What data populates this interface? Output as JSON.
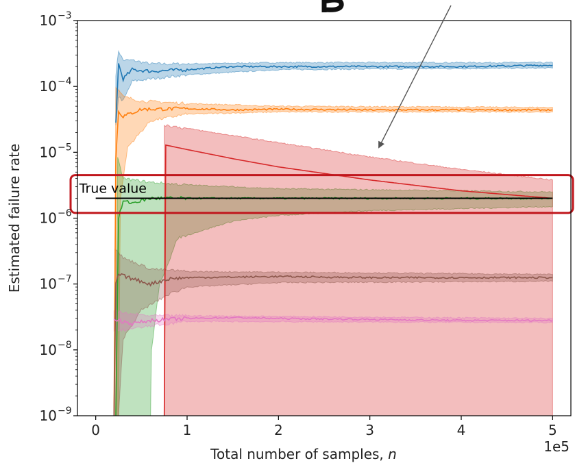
{
  "chart_data": {
    "type": "line",
    "title": "",
    "xlabel": "Total number of samples, n",
    "ylabel": "Estimated failure rate",
    "x_offset_label": "1e5",
    "yscale": "log",
    "xlim": [
      -0.2,
      5.2
    ],
    "ylim": [
      1e-09,
      0.001
    ],
    "x_ticks": [
      {
        "value": 0,
        "label": "0"
      },
      {
        "value": 1,
        "label": "1"
      },
      {
        "value": 2,
        "label": "2"
      },
      {
        "value": 3,
        "label": "3"
      },
      {
        "value": 4,
        "label": "4"
      },
      {
        "value": 5,
        "label": "5"
      }
    ],
    "y_ticks": [
      {
        "value": -9,
        "mant": "10",
        "exp": "−9"
      },
      {
        "value": -8,
        "mant": "10",
        "exp": "−8"
      },
      {
        "value": -7,
        "mant": "10",
        "exp": "−7"
      },
      {
        "value": -6,
        "mant": "10",
        "exp": "−6"
      },
      {
        "value": -5,
        "mant": "10",
        "exp": "−5"
      },
      {
        "value": -4,
        "mant": "10",
        "exp": "−4"
      },
      {
        "value": -3,
        "mant": "10",
        "exp": "−3"
      }
    ],
    "grid": false,
    "true_value": {
      "label": "True value",
      "value": 2e-06,
      "color": "#000000"
    },
    "highlight_box": {
      "color": "#c0161c",
      "y_range": [
        1.2e-06,
        4.5e-06
      ]
    },
    "series": [
      {
        "color": "#1f77b4",
        "x_start": 0.22,
        "end_value": 0.00021,
        "points": [
          [
            0.22,
            2.8e-05
          ],
          [
            0.25,
            0.00022
          ],
          [
            0.3,
            0.00013
          ],
          [
            0.4,
            0.00018
          ],
          [
            0.6,
            0.00017
          ],
          [
            1.0,
            0.00018
          ],
          [
            1.5,
            0.0002
          ],
          [
            2.0,
            0.0002
          ],
          [
            3.0,
            0.0002
          ],
          [
            4.0,
            0.0002
          ],
          [
            5.0,
            0.00021
          ]
        ],
        "band_upper": [
          [
            0.22,
            0.00015
          ],
          [
            0.25,
            0.00035
          ],
          [
            0.3,
            0.00025
          ],
          [
            0.4,
            0.00025
          ],
          [
            0.6,
            0.00022
          ],
          [
            1.0,
            0.00022
          ],
          [
            2.0,
            0.00023
          ],
          [
            5.0,
            0.00023
          ]
        ],
        "band_lower": [
          [
            0.22,
            2.5e-05
          ],
          [
            0.25,
            7e-05
          ],
          [
            0.3,
            6e-05
          ],
          [
            0.4,
            0.00012
          ],
          [
            0.6,
            0.00013
          ],
          [
            1.0,
            0.00015
          ],
          [
            2.0,
            0.00018
          ],
          [
            5.0,
            0.00019
          ]
        ]
      },
      {
        "color": "#ff7f0e",
        "x_start": 0.2,
        "end_value": 4.4e-05,
        "points": [
          [
            0.2,
            1e-09
          ],
          [
            0.22,
            8e-06
          ],
          [
            0.25,
            4.2e-05
          ],
          [
            0.3,
            3.5e-05
          ],
          [
            0.5,
            4.5e-05
          ],
          [
            1.0,
            4.6e-05
          ],
          [
            1.5,
            4.4e-05
          ],
          [
            2.0,
            4.5e-05
          ],
          [
            3.0,
            4.4e-05
          ],
          [
            4.0,
            4.4e-05
          ],
          [
            5.0,
            4.4e-05
          ]
        ],
        "band_upper": [
          [
            0.2,
            1e-09
          ],
          [
            0.22,
            0.0001
          ],
          [
            0.3,
            7e-05
          ],
          [
            0.5,
            6e-05
          ],
          [
            1.0,
            5.5e-05
          ],
          [
            2.0,
            5e-05
          ],
          [
            5.0,
            4.8e-05
          ]
        ],
        "band_lower": [
          [
            0.2,
            1e-09
          ],
          [
            0.22,
            1e-09
          ],
          [
            0.25,
            1e-09
          ],
          [
            0.27,
            2e-06
          ],
          [
            0.35,
            1.2e-05
          ],
          [
            0.6,
            3e-05
          ],
          [
            1.0,
            3.8e-05
          ],
          [
            2.0,
            4.1e-05
          ],
          [
            5.0,
            4.1e-05
          ]
        ]
      },
      {
        "color": "#2ca02c",
        "x_start": 0.22,
        "end_value": 2e-06,
        "points": [
          [
            0.22,
            1e-09
          ],
          [
            0.25,
            1e-06
          ],
          [
            0.3,
            1.8e-06
          ],
          [
            0.4,
            1.7e-06
          ],
          [
            0.6,
            2e-06
          ],
          [
            1.0,
            2e-06
          ],
          [
            2.0,
            2e-06
          ],
          [
            3.0,
            2e-06
          ],
          [
            4.0,
            2e-06
          ],
          [
            5.0,
            2e-06
          ]
        ],
        "band_upper": [
          [
            0.22,
            1e-09
          ],
          [
            0.24,
            8e-06
          ],
          [
            0.3,
            4e-06
          ],
          [
            0.6,
            3.5e-06
          ],
          [
            1.0,
            3.2e-06
          ],
          [
            2.0,
            2.8e-06
          ],
          [
            5.0,
            2.5e-06
          ]
        ],
        "band_lower": [
          [
            0.22,
            1e-09
          ],
          [
            0.6,
            1e-09
          ],
          [
            0.61,
            1e-08
          ],
          [
            0.7,
            1e-07
          ],
          [
            0.9,
            5e-07
          ],
          [
            1.5,
            9e-07
          ],
          [
            2.0,
            1.1e-06
          ],
          [
            3.0,
            1.3e-06
          ],
          [
            5.0,
            1.5e-06
          ]
        ]
      },
      {
        "color": "#d62728",
        "x_start": 0.75,
        "end_value": 2e-06,
        "points": [
          [
            0.75,
            1e-09
          ],
          [
            0.75,
            1.3e-05
          ],
          [
            1.0,
            1.1e-05
          ],
          [
            1.5,
            8e-06
          ],
          [
            2.0,
            6e-06
          ],
          [
            3.0,
            3.8e-06
          ],
          [
            4.0,
            2.6e-06
          ],
          [
            5.0,
            2e-06
          ]
        ],
        "band_upper": [
          [
            0.75,
            2.6e-05
          ],
          [
            1.0,
            2.3e-05
          ],
          [
            2.0,
            1.4e-05
          ],
          [
            3.0,
            8.5e-06
          ],
          [
            4.0,
            5.5e-06
          ],
          [
            5.0,
            3.8e-06
          ]
        ],
        "band_lower": [
          [
            0.75,
            1e-09
          ],
          [
            5.0,
            1e-09
          ]
        ]
      },
      {
        "color": "#8c564b",
        "x_start": 0.2,
        "end_value": 1.25e-07,
        "points": [
          [
            0.2,
            1e-09
          ],
          [
            0.22,
            1e-07
          ],
          [
            0.25,
            1.4e-07
          ],
          [
            0.4,
            1.2e-07
          ],
          [
            0.6,
            1e-07
          ],
          [
            0.8,
            1.2e-07
          ],
          [
            1.0,
            1.25e-07
          ],
          [
            2.0,
            1.3e-07
          ],
          [
            3.0,
            1.25e-07
          ],
          [
            4.0,
            1.25e-07
          ],
          [
            5.0,
            1.25e-07
          ]
        ],
        "band_upper": [
          [
            0.2,
            1e-09
          ],
          [
            0.21,
            3.5e-07
          ],
          [
            0.3,
            2.5e-07
          ],
          [
            0.6,
            1.7e-07
          ],
          [
            1.0,
            1.55e-07
          ],
          [
            5.0,
            1.4e-07
          ]
        ],
        "band_lower": [
          [
            0.2,
            1e-09
          ],
          [
            0.25,
            1e-09
          ],
          [
            0.3,
            1.5e-08
          ],
          [
            0.5,
            4e-08
          ],
          [
            0.8,
            7e-08
          ],
          [
            1.0,
            9e-08
          ],
          [
            2.0,
            1.05e-07
          ],
          [
            5.0,
            1.1e-07
          ]
        ]
      },
      {
        "color": "#e377c2",
        "x_start": 0.2,
        "end_value": 2.8e-08,
        "points": [
          [
            0.2,
            3e-08
          ],
          [
            0.25,
            2.8e-08
          ],
          [
            0.4,
            2.5e-08
          ],
          [
            0.6,
            2.8e-08
          ],
          [
            1.0,
            3e-08
          ],
          [
            1.5,
            3.1e-08
          ],
          [
            2.0,
            3e-08
          ],
          [
            3.0,
            2.9e-08
          ],
          [
            4.0,
            2.8e-08
          ],
          [
            5.0,
            2.8e-08
          ]
        ],
        "band_upper": [
          [
            0.2,
            4e-08
          ],
          [
            0.3,
            3.6e-08
          ],
          [
            0.6,
            3.3e-08
          ],
          [
            1.0,
            3.3e-08
          ],
          [
            5.0,
            3e-08
          ]
        ],
        "band_lower": [
          [
            0.2,
            2e-08
          ],
          [
            0.3,
            2e-08
          ],
          [
            0.6,
            2.3e-08
          ],
          [
            1.0,
            2.7e-08
          ],
          [
            5.0,
            2.6e-08
          ]
        ]
      }
    ]
  }
}
